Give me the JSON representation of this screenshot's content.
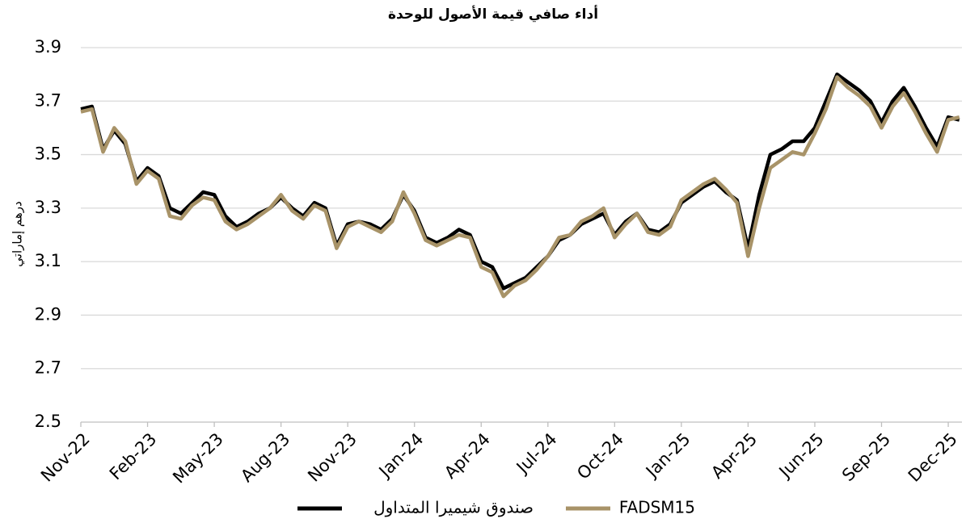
{
  "chart_data": {
    "type": "line",
    "title": "أداء صافي قيمة الأصول للوحدة",
    "y_label": "درهم إماراتي",
    "categories": [
      "Nov-22",
      null,
      null,
      null,
      null,
      null,
      "Feb-23",
      null,
      null,
      null,
      null,
      null,
      "May-23",
      null,
      null,
      null,
      null,
      null,
      "Aug-23",
      null,
      null,
      null,
      null,
      null,
      "Nov-23",
      null,
      null,
      null,
      null,
      null,
      "Jan-24",
      null,
      null,
      null,
      null,
      null,
      "Apr-24",
      null,
      null,
      null,
      null,
      null,
      "Jul-24",
      null,
      null,
      null,
      null,
      null,
      "Oct-24",
      null,
      null,
      null,
      null,
      null,
      "Jan-25",
      null,
      null,
      null,
      null,
      null,
      "Apr-25",
      null,
      null,
      null,
      null,
      null,
      "Jun-25",
      null,
      null,
      null,
      null,
      null,
      "Sep-25",
      null,
      null,
      null,
      null,
      null,
      "Dec-25",
      null
    ],
    "series": [
      {
        "name": "صندوق شيميرا المتداول",
        "color": "#000000",
        "values": [
          3.67,
          3.68,
          3.52,
          3.59,
          3.54,
          3.4,
          3.45,
          3.42,
          3.3,
          3.28,
          3.32,
          3.36,
          3.35,
          3.27,
          3.23,
          3.25,
          3.28,
          3.3,
          3.34,
          3.3,
          3.27,
          3.32,
          3.3,
          3.16,
          3.24,
          3.25,
          3.24,
          3.22,
          3.26,
          3.35,
          3.29,
          3.19,
          3.17,
          3.19,
          3.22,
          3.2,
          3.1,
          3.08,
          3.0,
          3.02,
          3.04,
          3.08,
          3.12,
          3.18,
          3.2,
          3.24,
          3.26,
          3.28,
          3.2,
          3.25,
          3.28,
          3.22,
          3.21,
          3.24,
          3.32,
          3.35,
          3.38,
          3.4,
          3.36,
          3.33,
          3.15,
          3.35,
          3.5,
          3.52,
          3.55,
          3.55,
          3.6,
          3.7,
          3.8,
          3.77,
          3.74,
          3.7,
          3.62,
          3.7,
          3.75,
          3.68,
          3.6,
          3.53,
          3.64,
          3.63
        ]
      },
      {
        "name": "FADSM15",
        "color": "#a89368",
        "values": [
          3.66,
          3.67,
          3.51,
          3.6,
          3.55,
          3.39,
          3.44,
          3.41,
          3.27,
          3.26,
          3.31,
          3.34,
          3.33,
          3.25,
          3.22,
          3.24,
          3.27,
          3.3,
          3.35,
          3.29,
          3.26,
          3.31,
          3.29,
          3.15,
          3.23,
          3.25,
          3.23,
          3.21,
          3.25,
          3.36,
          3.28,
          3.18,
          3.16,
          3.18,
          3.2,
          3.19,
          3.08,
          3.06,
          2.97,
          3.01,
          3.03,
          3.07,
          3.12,
          3.19,
          3.2,
          3.25,
          3.27,
          3.3,
          3.19,
          3.24,
          3.28,
          3.21,
          3.2,
          3.23,
          3.33,
          3.36,
          3.39,
          3.41,
          3.37,
          3.32,
          3.12,
          3.3,
          3.45,
          3.48,
          3.51,
          3.5,
          3.58,
          3.67,
          3.79,
          3.75,
          3.72,
          3.68,
          3.6,
          3.68,
          3.73,
          3.66,
          3.58,
          3.51,
          3.63,
          3.64
        ]
      }
    ],
    "ylim": [
      2.5,
      3.9
    ],
    "yticks": [
      2.5,
      2.7,
      2.9,
      3.1,
      3.3,
      3.5,
      3.7,
      3.9
    ],
    "grid": true,
    "legend": "bottom"
  }
}
